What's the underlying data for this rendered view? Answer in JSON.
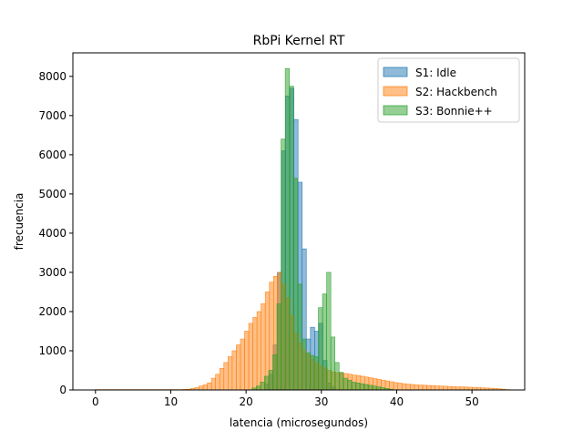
{
  "chart_data": {
    "type": "histogram",
    "title": "RbPi Kernel RT",
    "xlabel": "latencia (microsegundos)",
    "ylabel": "frecuencia",
    "xlim": [
      -3,
      57
    ],
    "ylim": [
      0,
      8600
    ],
    "xticks": [
      0,
      10,
      20,
      30,
      40,
      50
    ],
    "yticks": [
      0,
      1000,
      2000,
      3000,
      4000,
      5000,
      6000,
      7000,
      8000
    ],
    "bin_width": 0.55,
    "legend_position": "upper right",
    "series": [
      {
        "name": "S1: Idle",
        "color": "#1f77b4",
        "bins": [
          [
            22.5,
            150
          ],
          [
            23.05,
            400
          ],
          [
            23.6,
            1150
          ],
          [
            24.15,
            3000
          ],
          [
            24.7,
            6100
          ],
          [
            25.25,
            7500
          ],
          [
            25.8,
            7700
          ],
          [
            26.35,
            6900
          ],
          [
            26.9,
            5300
          ],
          [
            27.45,
            3600
          ],
          [
            28.0,
            1300
          ],
          [
            28.55,
            1600
          ],
          [
            29.1,
            1500
          ],
          [
            29.65,
            1700
          ],
          [
            30.2,
            750
          ],
          [
            30.75,
            180
          ],
          [
            31.3,
            80
          ]
        ]
      },
      {
        "name": "S2: Hackbench",
        "color": "#ff7f0e",
        "bins": [
          [
            0.0,
            10
          ],
          [
            0.55,
            10
          ],
          [
            1.1,
            10
          ],
          [
            1.65,
            10
          ],
          [
            2.2,
            10
          ],
          [
            2.75,
            10
          ],
          [
            3.3,
            10
          ],
          [
            3.85,
            10
          ],
          [
            4.4,
            10
          ],
          [
            4.95,
            10
          ],
          [
            5.5,
            10
          ],
          [
            6.05,
            10
          ],
          [
            6.6,
            10
          ],
          [
            7.15,
            10
          ],
          [
            7.7,
            10
          ],
          [
            8.25,
            10
          ],
          [
            8.8,
            10
          ],
          [
            9.35,
            10
          ],
          [
            9.9,
            10
          ],
          [
            10.45,
            10
          ],
          [
            11.0,
            10
          ],
          [
            11.55,
            15
          ],
          [
            12.1,
            20
          ],
          [
            12.65,
            40
          ],
          [
            13.2,
            60
          ],
          [
            13.75,
            100
          ],
          [
            14.3,
            130
          ],
          [
            14.85,
            180
          ],
          [
            15.4,
            300
          ],
          [
            15.95,
            400
          ],
          [
            16.5,
            550
          ],
          [
            17.05,
            700
          ],
          [
            17.6,
            850
          ],
          [
            18.15,
            1000
          ],
          [
            18.7,
            1150
          ],
          [
            19.25,
            1300
          ],
          [
            19.8,
            1500
          ],
          [
            20.35,
            1700
          ],
          [
            20.9,
            1850
          ],
          [
            21.45,
            2000
          ],
          [
            22.0,
            2200
          ],
          [
            22.55,
            2500
          ],
          [
            23.1,
            2750
          ],
          [
            23.65,
            2900
          ],
          [
            24.2,
            3000
          ],
          [
            24.75,
            2700
          ],
          [
            25.3,
            2350
          ],
          [
            25.85,
            1900
          ],
          [
            26.4,
            1450
          ],
          [
            26.95,
            1200
          ],
          [
            27.5,
            1000
          ],
          [
            28.05,
            900
          ],
          [
            28.6,
            780
          ],
          [
            29.15,
            700
          ],
          [
            29.7,
            620
          ],
          [
            30.25,
            560
          ],
          [
            30.8,
            500
          ],
          [
            31.35,
            460
          ],
          [
            31.9,
            440
          ],
          [
            32.45,
            430
          ],
          [
            33.0,
            420
          ],
          [
            33.55,
            400
          ],
          [
            34.1,
            380
          ],
          [
            34.65,
            370
          ],
          [
            35.2,
            350
          ],
          [
            35.75,
            330
          ],
          [
            36.3,
            310
          ],
          [
            36.85,
            290
          ],
          [
            37.4,
            270
          ],
          [
            37.95,
            250
          ],
          [
            38.5,
            230
          ],
          [
            39.05,
            210
          ],
          [
            39.6,
            190
          ],
          [
            40.15,
            175
          ],
          [
            40.7,
            160
          ],
          [
            41.25,
            150
          ],
          [
            41.8,
            140
          ],
          [
            42.35,
            130
          ],
          [
            42.9,
            125
          ],
          [
            43.45,
            120
          ],
          [
            44.0,
            115
          ],
          [
            44.55,
            110
          ],
          [
            45.1,
            105
          ],
          [
            45.65,
            100
          ],
          [
            46.2,
            95
          ],
          [
            46.75,
            90
          ],
          [
            47.3,
            85
          ],
          [
            47.85,
            80
          ],
          [
            48.4,
            80
          ],
          [
            48.95,
            75
          ],
          [
            49.5,
            70
          ],
          [
            50.05,
            65
          ],
          [
            50.6,
            60
          ],
          [
            51.15,
            55
          ],
          [
            51.7,
            50
          ],
          [
            52.25,
            45
          ],
          [
            52.8,
            40
          ],
          [
            53.35,
            30
          ],
          [
            53.9,
            20
          ],
          [
            54.45,
            10
          ]
        ]
      },
      {
        "name": "S3: Bonnie++",
        "color": "#2ca02c",
        "bins": [
          [
            20.8,
            50
          ],
          [
            21.35,
            100
          ],
          [
            21.9,
            200
          ],
          [
            22.45,
            350
          ],
          [
            23.0,
            500
          ],
          [
            23.55,
            900
          ],
          [
            24.1,
            2200
          ],
          [
            24.65,
            6400
          ],
          [
            25.2,
            8200
          ],
          [
            25.75,
            7750
          ],
          [
            26.3,
            5400
          ],
          [
            26.85,
            2700
          ],
          [
            27.4,
            1300
          ],
          [
            27.95,
            950
          ],
          [
            28.5,
            880
          ],
          [
            29.05,
            850
          ],
          [
            29.6,
            2100
          ],
          [
            30.15,
            2450
          ],
          [
            30.7,
            3000
          ],
          [
            31.25,
            1350
          ],
          [
            31.8,
            700
          ],
          [
            32.35,
            450
          ],
          [
            32.9,
            300
          ],
          [
            33.45,
            250
          ],
          [
            34.0,
            200
          ],
          [
            34.55,
            180
          ],
          [
            35.1,
            160
          ],
          [
            35.65,
            140
          ],
          [
            36.2,
            120
          ],
          [
            36.75,
            100
          ],
          [
            37.3,
            80
          ],
          [
            37.85,
            60
          ],
          [
            38.4,
            40
          ],
          [
            38.95,
            20
          ]
        ]
      }
    ]
  }
}
